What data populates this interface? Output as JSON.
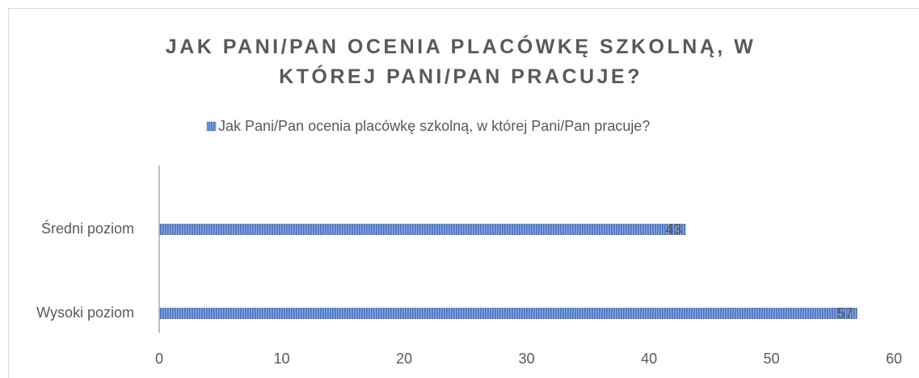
{
  "chart_data": {
    "type": "bar",
    "orientation": "horizontal",
    "title": "JAK PANI/PAN OCENIA PLACÓWKĘ SZKOLNĄ, W KTÓREJ PANI/PAN PRACUJE?",
    "categories": [
      "Średni poziom",
      "Wysoki poziom"
    ],
    "series": [
      {
        "name": "Jak Pani/Pan ocenia placówkę szkolną, w której Pani/Pan pracuje?",
        "color": "#4472c4",
        "values": [
          43,
          57
        ]
      }
    ],
    "xlim": [
      0,
      60
    ],
    "xticks": [
      0,
      10,
      20,
      30,
      40,
      50,
      60
    ],
    "grid": false,
    "legend": "top"
  }
}
